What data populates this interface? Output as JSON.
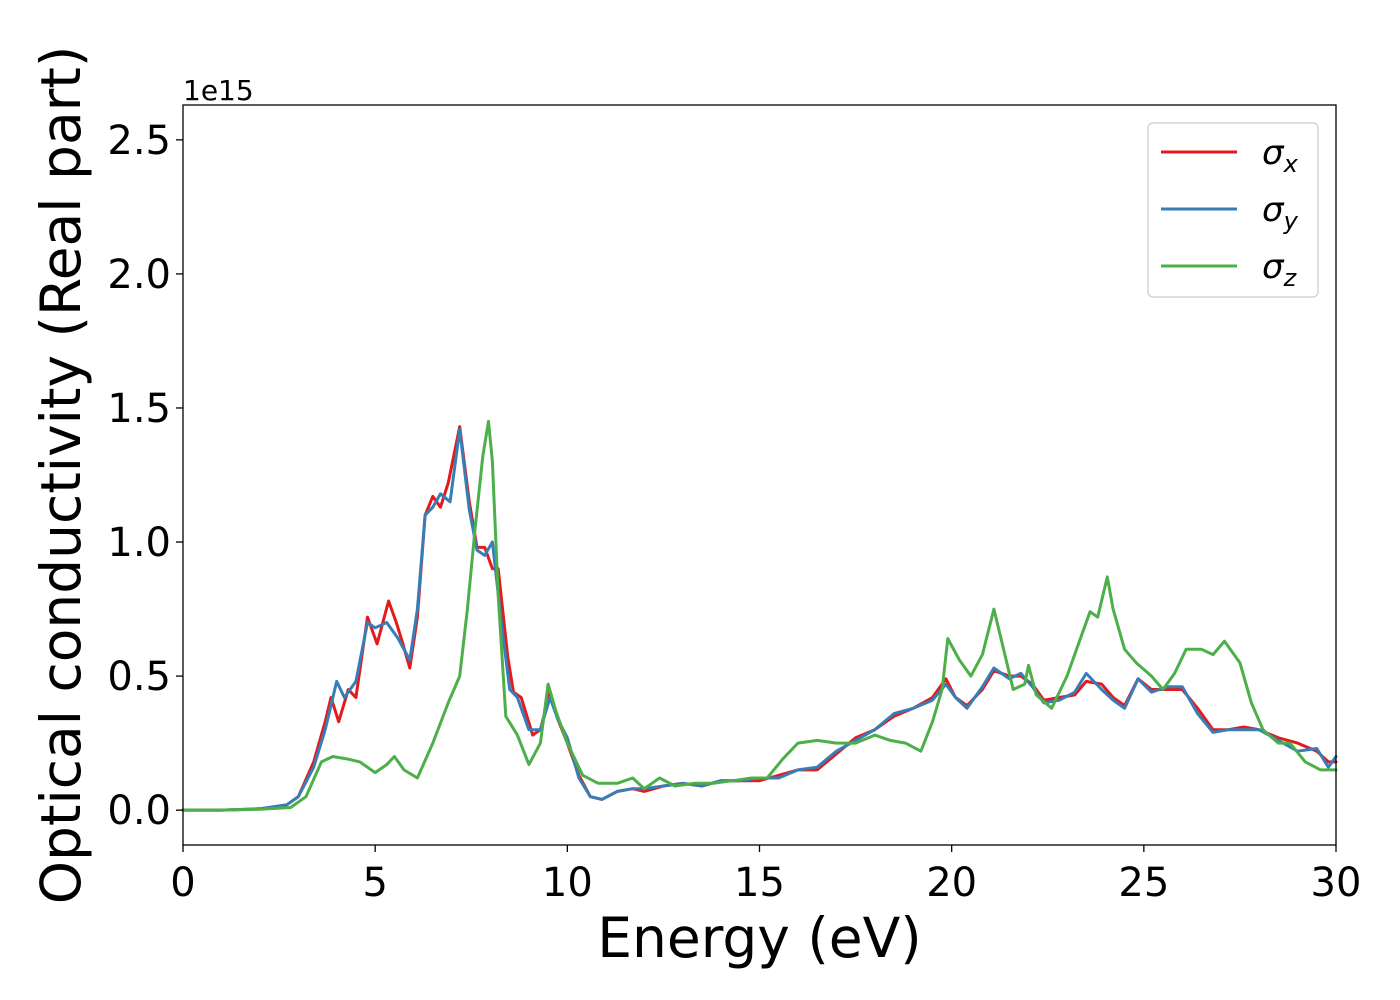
{
  "chart_data": {
    "type": "line",
    "title": "",
    "xlabel": "Energy (eV)",
    "ylabel": "Optical conductivity (Real part)",
    "y_offset_label": "1e15",
    "y_multiplier": 1000000000000000.0,
    "xlim": [
      0,
      30
    ],
    "ylim": [
      -0.13,
      2.63
    ],
    "x_ticks": [
      0,
      5,
      10,
      15,
      20,
      25,
      30
    ],
    "x_tick_labels": [
      "0",
      "5",
      "10",
      "15",
      "20",
      "25",
      "30"
    ],
    "y_ticks": [
      0.0,
      0.5,
      1.0,
      1.5,
      2.0,
      2.5
    ],
    "y_tick_labels": [
      "0.0",
      "0.5",
      "1.0",
      "1.5",
      "2.0",
      "2.5"
    ],
    "grid": false,
    "legend_position": "top-right",
    "series": [
      {
        "name": "σ_x",
        "legend_main": "σ",
        "legend_sub": "x",
        "color": "#e41a1c",
        "points": [
          [
            0,
            0
          ],
          [
            1,
            0
          ],
          [
            2,
            0.005
          ],
          [
            2.7,
            0.02
          ],
          [
            3.0,
            0.05
          ],
          [
            3.4,
            0.18
          ],
          [
            3.7,
            0.33
          ],
          [
            3.85,
            0.42
          ],
          [
            4.05,
            0.33
          ],
          [
            4.3,
            0.45
          ],
          [
            4.5,
            0.42
          ],
          [
            4.8,
            0.72
          ],
          [
            5.05,
            0.62
          ],
          [
            5.35,
            0.78
          ],
          [
            5.55,
            0.7
          ],
          [
            5.7,
            0.63
          ],
          [
            5.9,
            0.53
          ],
          [
            6.1,
            0.72
          ],
          [
            6.3,
            1.1
          ],
          [
            6.5,
            1.17
          ],
          [
            6.7,
            1.13
          ],
          [
            6.9,
            1.22
          ],
          [
            7.2,
            1.43
          ],
          [
            7.45,
            1.15
          ],
          [
            7.65,
            0.98
          ],
          [
            7.85,
            0.98
          ],
          [
            8.05,
            0.9
          ],
          [
            8.2,
            0.9
          ],
          [
            8.45,
            0.57
          ],
          [
            8.6,
            0.44
          ],
          [
            8.8,
            0.42
          ],
          [
            9.1,
            0.28
          ],
          [
            9.3,
            0.3
          ],
          [
            9.55,
            0.44
          ],
          [
            9.75,
            0.34
          ],
          [
            10.0,
            0.25
          ],
          [
            10.3,
            0.13
          ],
          [
            10.6,
            0.05
          ],
          [
            10.9,
            0.04
          ],
          [
            11.3,
            0.07
          ],
          [
            11.7,
            0.08
          ],
          [
            12.0,
            0.07
          ],
          [
            12.5,
            0.09
          ],
          [
            13.0,
            0.1
          ],
          [
            13.5,
            0.09
          ],
          [
            14.0,
            0.11
          ],
          [
            14.5,
            0.11
          ],
          [
            15.0,
            0.11
          ],
          [
            15.5,
            0.13
          ],
          [
            16.0,
            0.15
          ],
          [
            16.5,
            0.15
          ],
          [
            17.0,
            0.21
          ],
          [
            17.5,
            0.27
          ],
          [
            18.0,
            0.3
          ],
          [
            18.5,
            0.35
          ],
          [
            19.0,
            0.38
          ],
          [
            19.5,
            0.42
          ],
          [
            19.85,
            0.49
          ],
          [
            20.1,
            0.42
          ],
          [
            20.4,
            0.39
          ],
          [
            20.8,
            0.45
          ],
          [
            21.1,
            0.52
          ],
          [
            21.5,
            0.5
          ],
          [
            21.8,
            0.5
          ],
          [
            22.1,
            0.47
          ],
          [
            22.4,
            0.41
          ],
          [
            22.8,
            0.42
          ],
          [
            23.2,
            0.43
          ],
          [
            23.5,
            0.48
          ],
          [
            23.9,
            0.47
          ],
          [
            24.2,
            0.42
          ],
          [
            24.5,
            0.39
          ],
          [
            24.85,
            0.49
          ],
          [
            25.2,
            0.45
          ],
          [
            25.6,
            0.45
          ],
          [
            26.0,
            0.45
          ],
          [
            26.4,
            0.38
          ],
          [
            26.8,
            0.3
          ],
          [
            27.2,
            0.3
          ],
          [
            27.6,
            0.31
          ],
          [
            28.0,
            0.3
          ],
          [
            28.5,
            0.27
          ],
          [
            29.0,
            0.25
          ],
          [
            29.5,
            0.22
          ],
          [
            29.8,
            0.18
          ],
          [
            30,
            0.18
          ]
        ]
      },
      {
        "name": "σ_y",
        "legend_main": "σ",
        "legend_sub": "y",
        "color": "#377eb8",
        "points": [
          [
            0,
            0
          ],
          [
            1,
            0
          ],
          [
            2,
            0.005
          ],
          [
            2.7,
            0.02
          ],
          [
            3.0,
            0.05
          ],
          [
            3.4,
            0.16
          ],
          [
            3.7,
            0.3
          ],
          [
            4.0,
            0.48
          ],
          [
            4.2,
            0.42
          ],
          [
            4.5,
            0.48
          ],
          [
            4.8,
            0.7
          ],
          [
            5.0,
            0.68
          ],
          [
            5.3,
            0.7
          ],
          [
            5.6,
            0.64
          ],
          [
            5.9,
            0.56
          ],
          [
            6.1,
            0.75
          ],
          [
            6.3,
            1.1
          ],
          [
            6.5,
            1.13
          ],
          [
            6.7,
            1.18
          ],
          [
            6.95,
            1.15
          ],
          [
            7.2,
            1.42
          ],
          [
            7.45,
            1.12
          ],
          [
            7.65,
            0.97
          ],
          [
            7.85,
            0.95
          ],
          [
            8.05,
            1.0
          ],
          [
            8.3,
            0.68
          ],
          [
            8.5,
            0.45
          ],
          [
            8.7,
            0.42
          ],
          [
            9.0,
            0.3
          ],
          [
            9.3,
            0.3
          ],
          [
            9.55,
            0.42
          ],
          [
            9.75,
            0.34
          ],
          [
            10.0,
            0.27
          ],
          [
            10.3,
            0.12
          ],
          [
            10.6,
            0.05
          ],
          [
            10.9,
            0.04
          ],
          [
            11.3,
            0.07
          ],
          [
            11.7,
            0.08
          ],
          [
            12.0,
            0.08
          ],
          [
            12.5,
            0.09
          ],
          [
            13.0,
            0.1
          ],
          [
            13.5,
            0.09
          ],
          [
            14.0,
            0.11
          ],
          [
            14.5,
            0.11
          ],
          [
            15.0,
            0.12
          ],
          [
            15.5,
            0.12
          ],
          [
            16.0,
            0.15
          ],
          [
            16.5,
            0.16
          ],
          [
            17.0,
            0.22
          ],
          [
            17.5,
            0.26
          ],
          [
            18.0,
            0.3
          ],
          [
            18.5,
            0.36
          ],
          [
            19.0,
            0.38
          ],
          [
            19.5,
            0.41
          ],
          [
            19.85,
            0.47
          ],
          [
            20.1,
            0.42
          ],
          [
            20.4,
            0.38
          ],
          [
            20.8,
            0.46
          ],
          [
            21.1,
            0.53
          ],
          [
            21.5,
            0.49
          ],
          [
            21.8,
            0.51
          ],
          [
            22.1,
            0.46
          ],
          [
            22.4,
            0.4
          ],
          [
            22.8,
            0.41
          ],
          [
            23.2,
            0.44
          ],
          [
            23.5,
            0.51
          ],
          [
            23.9,
            0.45
          ],
          [
            24.2,
            0.41
          ],
          [
            24.5,
            0.38
          ],
          [
            24.85,
            0.49
          ],
          [
            25.2,
            0.44
          ],
          [
            25.6,
            0.46
          ],
          [
            26.0,
            0.46
          ],
          [
            26.4,
            0.36
          ],
          [
            26.8,
            0.29
          ],
          [
            27.2,
            0.3
          ],
          [
            27.6,
            0.3
          ],
          [
            28.0,
            0.3
          ],
          [
            28.5,
            0.26
          ],
          [
            29.0,
            0.22
          ],
          [
            29.5,
            0.23
          ],
          [
            29.8,
            0.16
          ],
          [
            30,
            0.2
          ]
        ]
      },
      {
        "name": "σ_z",
        "legend_main": "σ",
        "legend_sub": "z",
        "color": "#4daf4a",
        "points": [
          [
            0,
            0
          ],
          [
            1,
            0
          ],
          [
            2,
            0.003
          ],
          [
            2.8,
            0.01
          ],
          [
            3.2,
            0.05
          ],
          [
            3.6,
            0.18
          ],
          [
            3.9,
            0.2
          ],
          [
            4.3,
            0.19
          ],
          [
            4.6,
            0.18
          ],
          [
            5.0,
            0.14
          ],
          [
            5.3,
            0.17
          ],
          [
            5.5,
            0.2
          ],
          [
            5.75,
            0.15
          ],
          [
            6.1,
            0.12
          ],
          [
            6.5,
            0.25
          ],
          [
            6.9,
            0.4
          ],
          [
            7.2,
            0.5
          ],
          [
            7.4,
            0.75
          ],
          [
            7.6,
            1.05
          ],
          [
            7.8,
            1.32
          ],
          [
            7.95,
            1.45
          ],
          [
            8.05,
            1.3
          ],
          [
            8.2,
            0.8
          ],
          [
            8.4,
            0.35
          ],
          [
            8.7,
            0.28
          ],
          [
            9.0,
            0.17
          ],
          [
            9.3,
            0.25
          ],
          [
            9.5,
            0.47
          ],
          [
            9.7,
            0.37
          ],
          [
            10.0,
            0.25
          ],
          [
            10.4,
            0.13
          ],
          [
            10.8,
            0.1
          ],
          [
            11.3,
            0.1
          ],
          [
            11.7,
            0.12
          ],
          [
            12.0,
            0.08
          ],
          [
            12.4,
            0.12
          ],
          [
            12.8,
            0.09
          ],
          [
            13.3,
            0.1
          ],
          [
            13.8,
            0.1
          ],
          [
            14.3,
            0.11
          ],
          [
            14.8,
            0.12
          ],
          [
            15.2,
            0.12
          ],
          [
            15.6,
            0.19
          ],
          [
            16.0,
            0.25
          ],
          [
            16.5,
            0.26
          ],
          [
            17.0,
            0.25
          ],
          [
            17.5,
            0.25
          ],
          [
            18.0,
            0.28
          ],
          [
            18.4,
            0.26
          ],
          [
            18.8,
            0.25
          ],
          [
            19.2,
            0.22
          ],
          [
            19.5,
            0.33
          ],
          [
            19.75,
            0.45
          ],
          [
            19.9,
            0.64
          ],
          [
            20.2,
            0.56
          ],
          [
            20.5,
            0.5
          ],
          [
            20.8,
            0.58
          ],
          [
            21.1,
            0.75
          ],
          [
            21.35,
            0.6
          ],
          [
            21.6,
            0.45
          ],
          [
            21.9,
            0.47
          ],
          [
            22.0,
            0.54
          ],
          [
            22.2,
            0.43
          ],
          [
            22.6,
            0.38
          ],
          [
            23.0,
            0.5
          ],
          [
            23.3,
            0.62
          ],
          [
            23.6,
            0.74
          ],
          [
            23.8,
            0.72
          ],
          [
            24.05,
            0.87
          ],
          [
            24.2,
            0.75
          ],
          [
            24.5,
            0.6
          ],
          [
            24.8,
            0.55
          ],
          [
            25.2,
            0.5
          ],
          [
            25.5,
            0.45
          ],
          [
            25.8,
            0.51
          ],
          [
            26.1,
            0.6
          ],
          [
            26.5,
            0.6
          ],
          [
            26.8,
            0.58
          ],
          [
            27.1,
            0.63
          ],
          [
            27.5,
            0.55
          ],
          [
            27.8,
            0.4
          ],
          [
            28.1,
            0.3
          ],
          [
            28.5,
            0.25
          ],
          [
            28.8,
            0.25
          ],
          [
            29.2,
            0.18
          ],
          [
            29.6,
            0.15
          ],
          [
            30,
            0.15
          ]
        ]
      }
    ]
  }
}
